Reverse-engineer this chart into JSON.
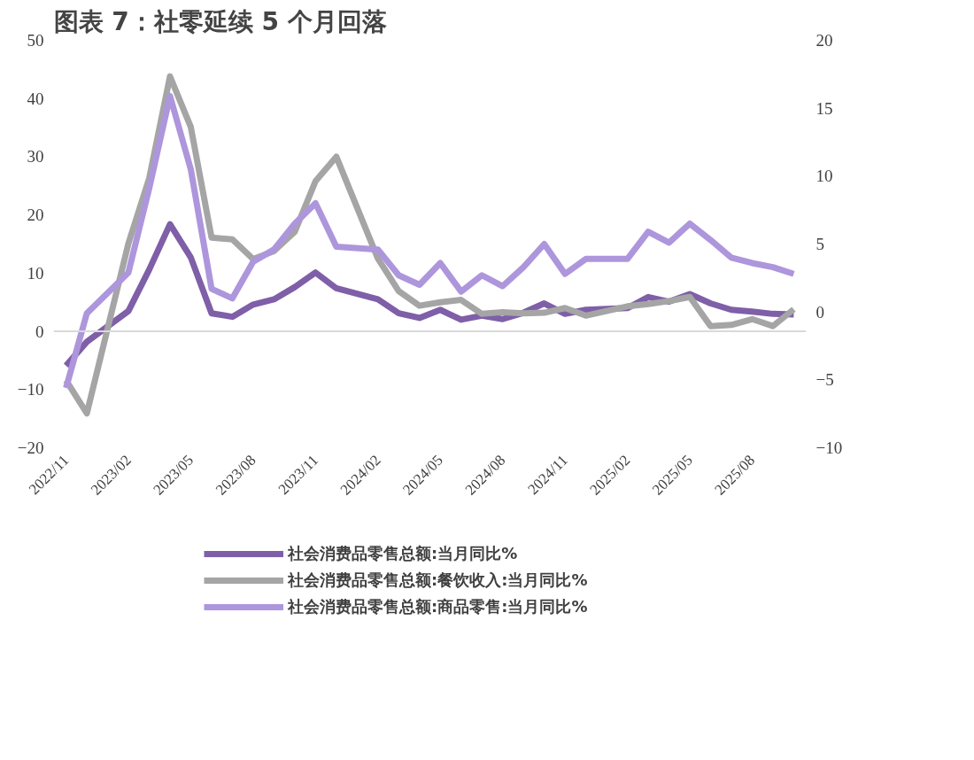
{
  "chart_data": {
    "type": "line",
    "title": "图表 7：社零延续 5 个月回落",
    "categories": [
      "2022/11",
      null,
      null,
      "2023/02",
      null,
      null,
      "2023/05",
      null,
      null,
      "2023/08",
      null,
      null,
      "2023/11",
      null,
      null,
      "2024/02",
      null,
      null,
      "2024/05",
      null,
      null,
      "2024/08",
      null,
      null,
      "2024/11",
      null,
      null,
      "2025/02",
      null,
      null,
      "2025/05",
      null,
      null,
      "2025/08",
      null,
      null
    ],
    "series": [
      {
        "name": "社会消费品零售总额:当月同比%",
        "color": "#7f5fa8",
        "values": [
          -5.9,
          -1.8,
          null,
          3.5,
          10.6,
          18.4,
          12.7,
          3.1,
          2.5,
          4.6,
          5.5,
          7.6,
          10.1,
          7.4,
          null,
          5.5,
          3.1,
          2.3,
          3.7,
          2.0,
          2.7,
          2.1,
          3.2,
          4.8,
          3.0,
          3.7,
          null,
          4.0,
          5.9,
          5.1,
          6.4,
          4.8,
          3.7,
          3.4,
          3.0,
          2.9
        ]
      },
      {
        "name": "社会消费品零售总额:餐饮收入:当月同比%",
        "color": "#a5a5a5",
        "values": [
          -8.4,
          -14.1,
          null,
          15.1,
          26.3,
          43.8,
          35.1,
          16.1,
          15.8,
          12.4,
          13.8,
          17.1,
          25.8,
          30.0,
          null,
          12.5,
          6.9,
          4.4,
          5.0,
          5.4,
          3.0,
          3.3,
          3.1,
          3.2,
          4.0,
          2.7,
          null,
          4.3,
          4.7,
          5.2,
          5.9,
          0.9,
          1.1,
          2.1,
          0.9,
          3.8
        ]
      },
      {
        "name": "社会消费品零售总额:商品零售:当月同比%",
        "color": "#ad96dc",
        "axis": "y2",
        "values": [
          -5.6,
          -0.1,
          null,
          2.9,
          9.1,
          15.9,
          10.5,
          1.7,
          1.0,
          3.7,
          4.6,
          6.5,
          8.0,
          4.8,
          null,
          4.6,
          2.7,
          2.0,
          3.6,
          1.5,
          2.7,
          1.9,
          3.3,
          5.0,
          2.8,
          3.9,
          null,
          3.9,
          5.9,
          5.1,
          6.5,
          5.3,
          4.0,
          3.6,
          3.3,
          2.8
        ]
      }
    ],
    "ylim": [
      -20,
      50
    ],
    "yticks": [
      -20,
      -10,
      0,
      10,
      20,
      30,
      40,
      50
    ],
    "y2lim": [
      -10,
      20
    ],
    "y2ticks": [
      -10,
      -5,
      0,
      5,
      10,
      15,
      20
    ],
    "ref_lines": [
      {
        "axis": "y",
        "value": 0,
        "color": "#d9d9d9"
      }
    ],
    "grid": false,
    "legend": "bottom",
    "line_style": "solid"
  }
}
